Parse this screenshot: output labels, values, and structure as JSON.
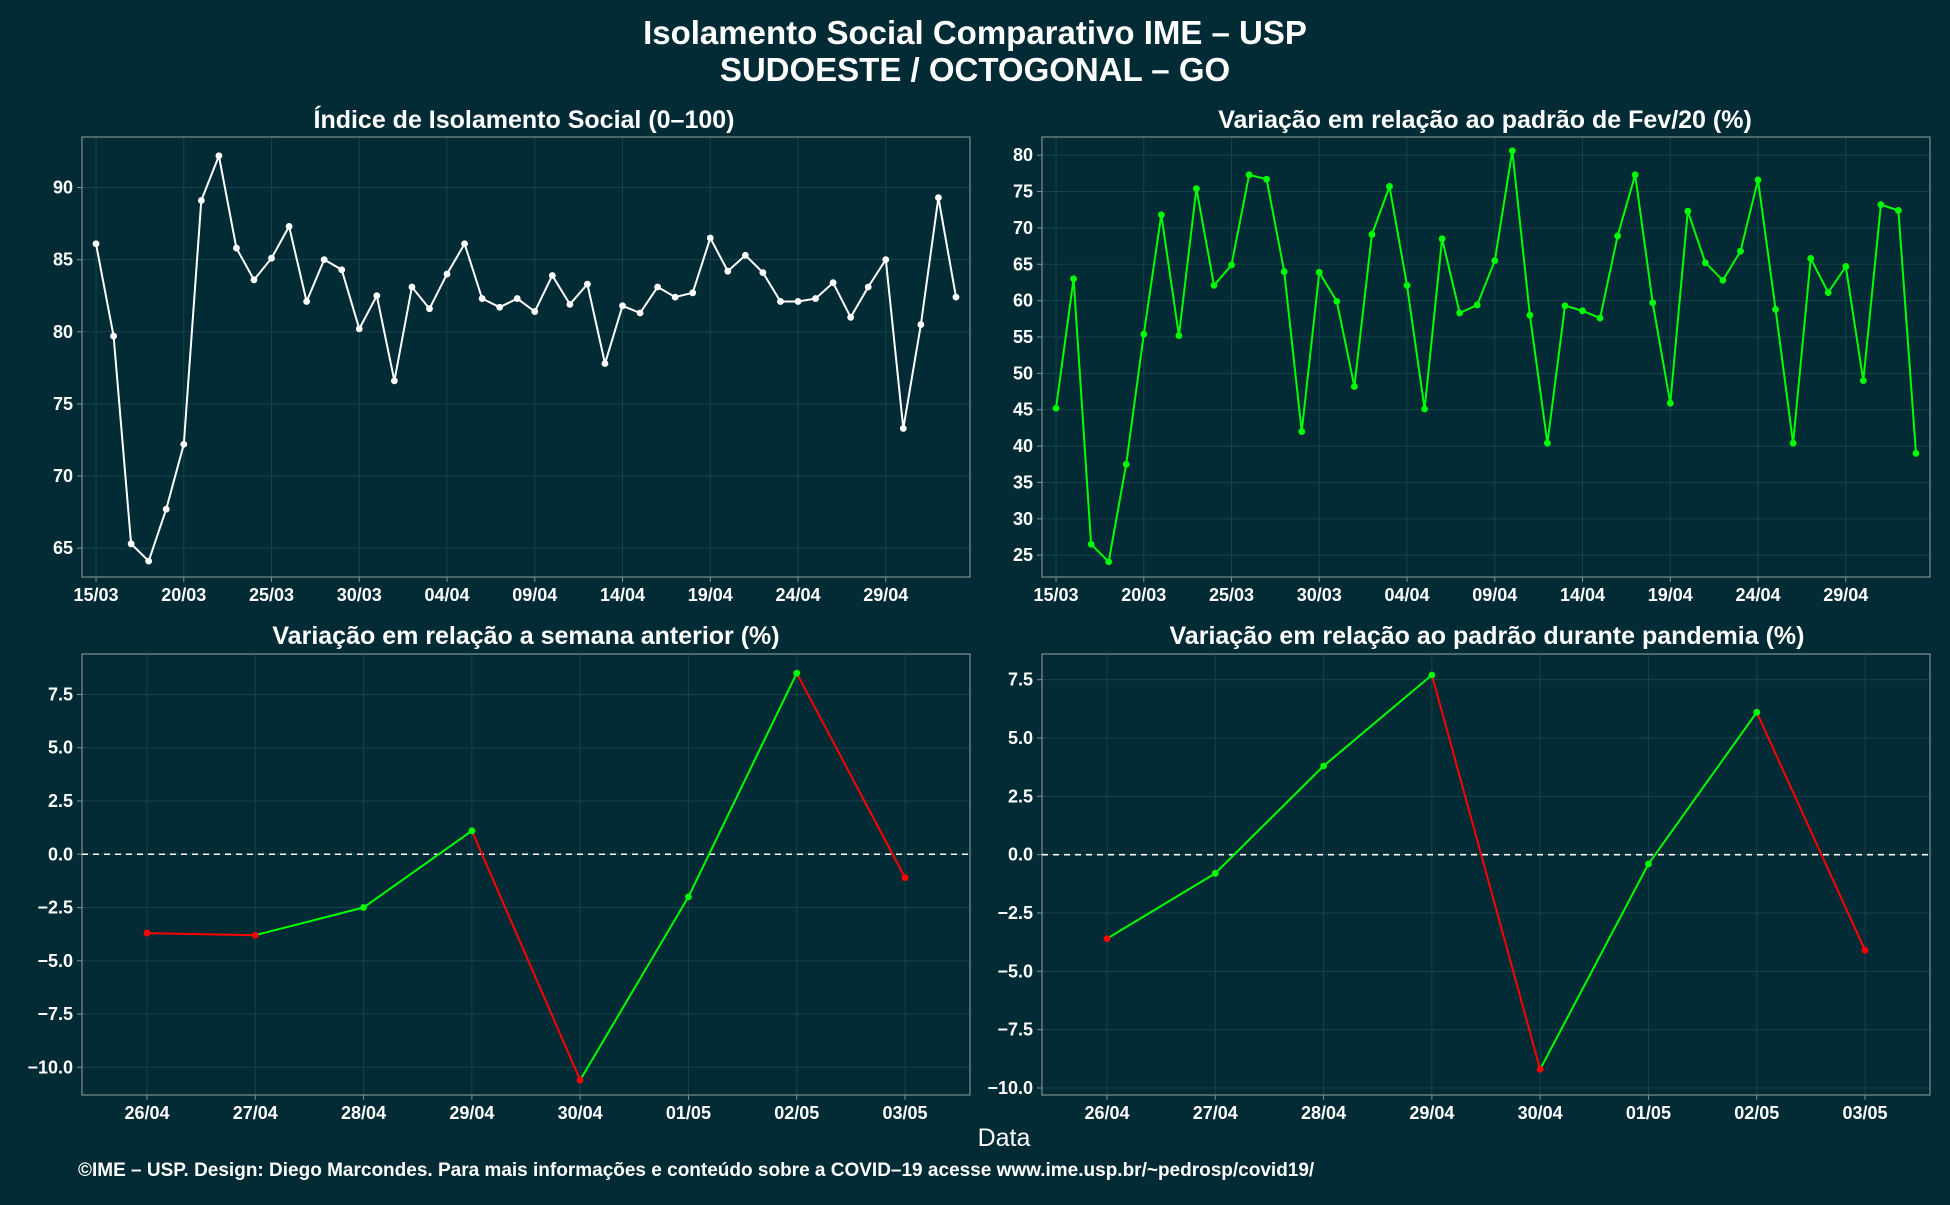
{
  "title_line1": "Isolamento Social Comparativo IME – USP",
  "title_line2": "SUDOESTE / OCTOGONAL – GO",
  "xlabel": "Data",
  "footer": "©IME – USP. Design: Diego Marcondes. Para mais informações e conteúdo sobre a COVID–19 acesse www.ime.usp.br/~pedrosp/covid19/",
  "colors": {
    "background": "#022b35",
    "white": "#ffffff",
    "green": "#00ff00",
    "red": "#ff0000",
    "grid": "#16434b",
    "frame": "#7f8f92"
  },
  "chart_data": [
    {
      "type": "line",
      "title": "Índice de Isolamento Social (0–100)",
      "x_start": "15/03",
      "x_tick_labels": [
        "15/03",
        "20/03",
        "25/03",
        "30/03",
        "04/04",
        "09/04",
        "14/04",
        "19/04",
        "24/04",
        "29/04"
      ],
      "y_ticks": [
        65,
        70,
        75,
        80,
        85,
        90
      ],
      "ylim": [
        63.0,
        93.5
      ],
      "color": "white",
      "values": [
        86.1,
        79.7,
        65.3,
        64.1,
        67.7,
        72.2,
        89.1,
        92.2,
        85.8,
        83.6,
        85.1,
        87.3,
        82.1,
        85.0,
        84.3,
        80.2,
        82.5,
        76.6,
        83.1,
        81.6,
        84.0,
        86.1,
        82.3,
        81.7,
        82.3,
        81.4,
        83.9,
        81.9,
        83.3,
        77.8,
        81.8,
        81.3,
        83.1,
        82.4,
        82.7,
        86.5,
        84.2,
        85.3,
        84.1,
        82.1,
        82.1,
        82.3,
        83.4,
        81.0,
        83.1,
        85.0,
        73.3,
        80.5,
        89.3,
        82.4
      ]
    },
    {
      "type": "line",
      "title": "Variação em relação ao padrão de Fev/20 (%)",
      "x_start": "15/03",
      "x_tick_labels": [
        "15/03",
        "20/03",
        "25/03",
        "30/03",
        "04/04",
        "09/04",
        "14/04",
        "19/04",
        "24/04",
        "29/04"
      ],
      "y_ticks": [
        25,
        30,
        35,
        40,
        45,
        50,
        55,
        60,
        65,
        70,
        75,
        80
      ],
      "ylim": [
        22.0,
        82.5
      ],
      "color": "green",
      "values": [
        45.2,
        63.0,
        26.5,
        24.1,
        37.5,
        55.4,
        71.8,
        55.2,
        75.4,
        62.1,
        64.9,
        77.3,
        76.7,
        64.0,
        42.0,
        63.9,
        59.9,
        48.2,
        69.1,
        75.7,
        62.1,
        45.1,
        68.5,
        58.3,
        59.4,
        65.5,
        80.6,
        58.0,
        40.4,
        59.3,
        58.6,
        57.6,
        68.9,
        77.3,
        59.7,
        45.9,
        72.3,
        65.2,
        62.8,
        66.8,
        76.6,
        58.8,
        40.4,
        65.8,
        61.1,
        64.7,
        49.0,
        73.2,
        72.4,
        39.0
      ]
    },
    {
      "type": "line",
      "title": "Variação em relação a semana anterior (%)",
      "categories": [
        "26/04",
        "27/04",
        "28/04",
        "29/04",
        "30/04",
        "01/05",
        "02/05",
        "03/05"
      ],
      "values": [
        -3.7,
        -3.8,
        -2.5,
        1.1,
        -10.6,
        -2.0,
        8.5,
        -1.1
      ],
      "y_ticks": [
        -10.0,
        -7.5,
        -5.0,
        -2.5,
        0.0,
        2.5,
        5.0,
        7.5
      ],
      "ylim": [
        -11.3,
        9.4
      ],
      "reference_line": 0,
      "rise_color": "green",
      "fall_color": "red"
    },
    {
      "type": "line",
      "title": "Variação em relação ao padrão durante pandemia (%)",
      "categories": [
        "26/04",
        "27/04",
        "28/04",
        "29/04",
        "30/04",
        "01/05",
        "02/05",
        "03/05"
      ],
      "values": [
        -3.6,
        -0.8,
        3.8,
        7.7,
        -9.2,
        -0.4,
        6.1,
        -4.1
      ],
      "y_ticks": [
        -10.0,
        -7.5,
        -5.0,
        -2.5,
        0.0,
        2.5,
        5.0,
        7.5
      ],
      "ylim": [
        -10.3,
        8.6
      ],
      "reference_line": 0,
      "rise_color": "green",
      "fall_color": "red"
    }
  ]
}
